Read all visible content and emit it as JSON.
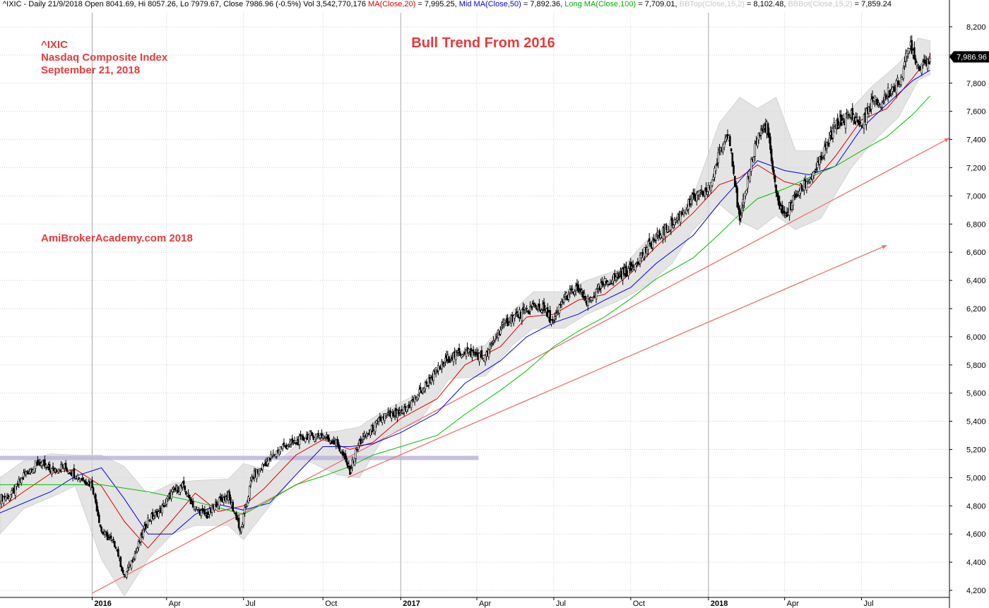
{
  "header": {
    "symbol_info": "^IXIC - Daily 21/9/2018 Open 8041.69, Hi 8057.26, Lo 7979.67, Close 7986.96 (-0.5%) Vol 3,542,770,176",
    "ma20_label": "MA(Close,20)",
    "ma20_value": "= 7,995.25,",
    "ma50_label": "Mid MA(Close,50)",
    "ma50_value": "= 7,892.36,",
    "ma100_label": "Long MA(Close,100)",
    "ma100_value": "= 7,709.01,",
    "bbtop_label": "BBTop(Close,15,2)",
    "bbtop_value": "= 8,102.48,",
    "bbbot_label": "BBBot(Close,15,2)",
    "bbbot_value": "= 7,859.24"
  },
  "annotations": {
    "ticker": "^IXIC",
    "index_name": "Nasdaq Composite Index",
    "date": "September 21, 2018",
    "watermark": "AmiBrokerAcademy.com  2018"
  },
  "colors": {
    "candle": "#000000",
    "ma20": "#e00000",
    "ma50": "#0000e0",
    "ma100": "#00c000",
    "band": "#d9d9d9",
    "trendline": "#f07070",
    "support_zone": "#b9b0d8",
    "grid": "#d0d0d0"
  },
  "chart_data": {
    "type": "line",
    "title": "Bull Trend From 2016",
    "ylim": [
      4150,
      8300
    ],
    "y_ticks": [
      "8,200",
      "8,000",
      "7,800",
      "7,600",
      "7,400",
      "7,200",
      "7,000",
      "6,800",
      "6,600",
      "6,400",
      "6,200",
      "6,000",
      "5,800",
      "5,600",
      "5,400",
      "5,200",
      "5,000",
      "4,800",
      "4,600",
      "4,400",
      "4,200"
    ],
    "y_tick_values": [
      8200,
      8000,
      7800,
      7600,
      7400,
      7200,
      7000,
      6800,
      6600,
      6400,
      6200,
      6000,
      5800,
      5600,
      5400,
      5200,
      5000,
      4800,
      4600,
      4400,
      4200
    ],
    "x_ticks": [
      "2016",
      "Apr",
      "Jul",
      "Oct",
      "2017",
      "Apr",
      "Jul",
      "Oct",
      "2018",
      "Apr",
      "Jul"
    ],
    "x_tick_dates": [
      "2016-01-04",
      "2016-04-01",
      "2016-07-01",
      "2016-10-03",
      "2017-01-03",
      "2017-04-03",
      "2017-07-03",
      "2017-10-02",
      "2018-01-02",
      "2018-04-02",
      "2018-07-02"
    ],
    "x_range": [
      "2015-09-17",
      "2018-10-14"
    ],
    "last_close_label": "7,986.96",
    "last_close": 7986.96,
    "grid": true,
    "series": [
      {
        "name": "Close",
        "style": "candles",
        "x": [
          "2015-09-17",
          "2015-10-01",
          "2015-10-15",
          "2015-11-02",
          "2015-11-16",
          "2015-12-01",
          "2015-12-15",
          "2016-01-04",
          "2016-01-15",
          "2016-02-01",
          "2016-02-11",
          "2016-02-25",
          "2016-03-10",
          "2016-03-24",
          "2016-04-08",
          "2016-04-20",
          "2016-05-05",
          "2016-05-19",
          "2016-06-01",
          "2016-06-13",
          "2016-06-24",
          "2016-06-27",
          "2016-07-11",
          "2016-07-25",
          "2016-08-15",
          "2016-09-01",
          "2016-09-15",
          "2016-10-03",
          "2016-10-20",
          "2016-11-04",
          "2016-11-15",
          "2016-12-01",
          "2016-12-15",
          "2017-01-03",
          "2017-01-25",
          "2017-02-15",
          "2017-03-01",
          "2017-03-20",
          "2017-04-13",
          "2017-05-01",
          "2017-05-15",
          "2017-06-01",
          "2017-06-09",
          "2017-06-20",
          "2017-07-03",
          "2017-07-15",
          "2017-08-01",
          "2017-08-11",
          "2017-09-01",
          "2017-09-20",
          "2017-10-02",
          "2017-10-20",
          "2017-11-01",
          "2017-11-20",
          "2017-12-15",
          "2018-01-02",
          "2018-01-15",
          "2018-01-26",
          "2018-02-08",
          "2018-02-20",
          "2018-03-01",
          "2018-03-12",
          "2018-03-23",
          "2018-04-02",
          "2018-04-15",
          "2018-05-01",
          "2018-05-15",
          "2018-06-01",
          "2018-06-20",
          "2018-07-02",
          "2018-07-15",
          "2018-07-25",
          "2018-08-01",
          "2018-08-15",
          "2018-08-29",
          "2018-09-07",
          "2018-09-21"
        ],
        "values": [
          4850,
          4880,
          5020,
          5110,
          5050,
          5080,
          5020,
          4950,
          4620,
          4520,
          4290,
          4480,
          4700,
          4760,
          4900,
          4940,
          4780,
          4730,
          4830,
          4870,
          4700,
          4600,
          5000,
          5090,
          5220,
          5250,
          5300,
          5300,
          5240,
          5050,
          5250,
          5350,
          5440,
          5450,
          5600,
          5760,
          5850,
          5900,
          5850,
          6060,
          6140,
          6180,
          6220,
          6200,
          6100,
          6280,
          6340,
          6240,
          6380,
          6440,
          6480,
          6620,
          6700,
          6800,
          6980,
          7040,
          7300,
          7470,
          6800,
          7200,
          7420,
          7500,
          7000,
          6850,
          7000,
          7120,
          7250,
          7500,
          7580,
          7500,
          7680,
          7650,
          7720,
          7800,
          8080,
          7920,
          7987
        ]
      },
      {
        "name": "MA(Close,20)",
        "x": [
          "2015-09-17",
          "2015-10-15",
          "2015-11-16",
          "2015-12-15",
          "2016-01-15",
          "2016-02-11",
          "2016-03-10",
          "2016-04-08",
          "2016-05-05",
          "2016-06-01",
          "2016-07-01",
          "2016-07-25",
          "2016-09-01",
          "2016-10-03",
          "2016-11-04",
          "2016-12-01",
          "2017-01-03",
          "2017-02-15",
          "2017-03-20",
          "2017-05-01",
          "2017-06-01",
          "2017-07-03",
          "2017-08-01",
          "2017-09-01",
          "2017-10-02",
          "2017-11-01",
          "2017-12-15",
          "2018-01-15",
          "2018-02-08",
          "2018-03-01",
          "2018-04-02",
          "2018-05-01",
          "2018-06-01",
          "2018-07-02",
          "2018-08-01",
          "2018-09-01",
          "2018-09-21"
        ],
        "values": [
          4780,
          4900,
          5030,
          5060,
          4940,
          4690,
          4500,
          4700,
          4890,
          4760,
          4800,
          4920,
          5160,
          5270,
          5200,
          5250,
          5420,
          5560,
          5800,
          5930,
          6140,
          6160,
          6260,
          6300,
          6450,
          6640,
          6880,
          7080,
          7130,
          7220,
          7100,
          7060,
          7280,
          7540,
          7620,
          7840,
          7995
        ]
      },
      {
        "name": "Mid MA(Close,50)",
        "x": [
          "2015-09-17",
          "2015-11-16",
          "2015-12-15",
          "2016-01-15",
          "2016-02-11",
          "2016-03-10",
          "2016-04-08",
          "2016-05-05",
          "2016-06-01",
          "2016-07-01",
          "2016-08-01",
          "2016-09-01",
          "2016-10-03",
          "2016-11-04",
          "2016-12-01",
          "2017-01-03",
          "2017-02-15",
          "2017-03-20",
          "2017-05-01",
          "2017-06-01",
          "2017-07-03",
          "2017-08-01",
          "2017-09-01",
          "2017-10-02",
          "2017-11-01",
          "2017-12-15",
          "2018-01-15",
          "2018-02-08",
          "2018-03-01",
          "2018-04-02",
          "2018-05-01",
          "2018-06-01",
          "2018-07-02",
          "2018-08-01",
          "2018-09-01",
          "2018-09-21"
        ],
        "values": [
          4750,
          4900,
          5010,
          5070,
          4850,
          4600,
          4600,
          4740,
          4810,
          4770,
          4820,
          5020,
          5220,
          5220,
          5240,
          5320,
          5460,
          5670,
          5830,
          6000,
          6100,
          6160,
          6260,
          6350,
          6520,
          6720,
          6950,
          7110,
          7250,
          7180,
          7150,
          7210,
          7480,
          7650,
          7820,
          7892
        ]
      },
      {
        "name": "Long MA(Close,100)",
        "x": [
          "2015-09-17",
          "2015-11-16",
          "2016-01-15",
          "2016-03-10",
          "2016-05-05",
          "2016-07-01",
          "2016-08-01",
          "2016-09-01",
          "2016-10-03",
          "2016-11-04",
          "2016-12-01",
          "2017-01-03",
          "2017-02-15",
          "2017-03-20",
          "2017-05-01",
          "2017-06-01",
          "2017-07-03",
          "2017-08-01",
          "2017-09-01",
          "2017-10-02",
          "2017-11-01",
          "2017-12-15",
          "2018-01-15",
          "2018-02-08",
          "2018-03-01",
          "2018-04-02",
          "2018-05-01",
          "2018-06-01",
          "2018-07-02",
          "2018-08-01",
          "2018-09-01",
          "2018-09-21"
        ],
        "values": [
          4950,
          4950,
          4950,
          4900,
          4830,
          4740,
          4840,
          4950,
          5010,
          5080,
          5160,
          5220,
          5300,
          5450,
          5620,
          5760,
          5930,
          6040,
          6140,
          6270,
          6410,
          6560,
          6730,
          6870,
          6980,
          7050,
          7130,
          7210,
          7320,
          7420,
          7580,
          7709
        ]
      }
    ],
    "bands": {
      "name": "Bollinger Bands (15,2)",
      "x": [
        "2015-09-17",
        "2015-10-15",
        "2015-11-16",
        "2015-12-15",
        "2016-01-15",
        "2016-02-11",
        "2016-03-10",
        "2016-04-08",
        "2016-05-05",
        "2016-06-13",
        "2016-07-01",
        "2016-08-01",
        "2016-09-15",
        "2016-10-20",
        "2016-11-15",
        "2016-12-15",
        "2017-01-25",
        "2017-03-01",
        "2017-04-13",
        "2017-05-15",
        "2017-06-09",
        "2017-07-15",
        "2017-08-11",
        "2017-09-20",
        "2017-10-20",
        "2017-11-20",
        "2017-12-15",
        "2018-01-15",
        "2018-02-08",
        "2018-03-01",
        "2018-03-23",
        "2018-04-15",
        "2018-05-15",
        "2018-06-20",
        "2018-07-15",
        "2018-08-15",
        "2018-09-07",
        "2018-09-21"
      ],
      "upper": [
        5000,
        5120,
        5170,
        5160,
        5160,
        5080,
        4880,
        4960,
        4980,
        4990,
        5100,
        5050,
        5310,
        5330,
        5360,
        5480,
        5600,
        5880,
        5940,
        6180,
        6320,
        6320,
        6400,
        6480,
        6680,
        6820,
        7000,
        7520,
        7700,
        7620,
        7700,
        7320,
        7320,
        7620,
        7780,
        7940,
        8120,
        8102
      ],
      "lower": [
        4600,
        4780,
        4860,
        4940,
        4420,
        4160,
        4420,
        4600,
        4660,
        4660,
        4560,
        4800,
        5120,
        5020,
        5000,
        5300,
        5400,
        5700,
        5720,
        5940,
        6060,
        6060,
        6160,
        6260,
        6360,
        6520,
        6760,
        6940,
        6820,
        6760,
        6860,
        6760,
        6840,
        7200,
        7380,
        7560,
        7820,
        7859
      ]
    },
    "annotations": [
      {
        "type": "trendline",
        "x1": "2016-01-04",
        "y1": 4180,
        "x2": "2018-10-14",
        "y2": 7410
      },
      {
        "type": "trendline",
        "x1": "2016-11-01",
        "y1": 5000,
        "x2": "2018-08-01",
        "y2": 6650
      },
      {
        "type": "support_zone",
        "x1": "2015-09-17",
        "x2": "2017-04-05",
        "y": 5140
      }
    ]
  }
}
